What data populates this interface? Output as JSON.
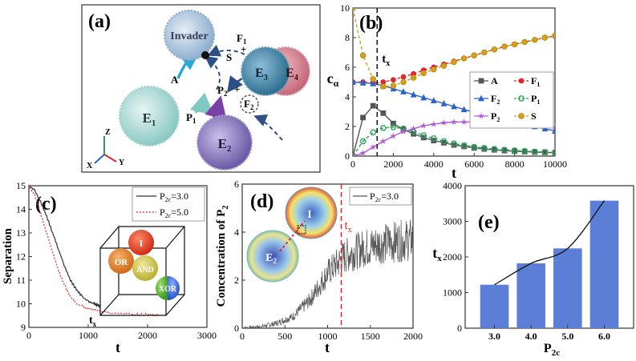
{
  "panel_a": {
    "label": "(a)",
    "nodes": {
      "invader": "Invader",
      "e1": "E",
      "e1_sub": "1",
      "e2": "E",
      "e2_sub": "2",
      "e3": "E",
      "e3_sub": "3",
      "e4": "E",
      "e4_sub": "4"
    },
    "species": {
      "a": "A",
      "p1": "P",
      "p1_sub": "1",
      "p2": "P",
      "p2_sub": "2",
      "f1": "F",
      "f1_sub": "1",
      "f2": "F",
      "f2_sub": "2",
      "s": "S",
      "plus": "+"
    },
    "axes": {
      "z": "Z",
      "x": "X",
      "y": "Y"
    },
    "colors": {
      "invader": "#a9c3dc",
      "e1": "#a8d8d4",
      "e2": "#8f7fc0",
      "e3": "#4f8fb0",
      "e4": "#d88a96"
    }
  },
  "chart_data": [
    {
      "panel": "(b)",
      "type": "line",
      "ylabel": "c",
      "ylabel_sub": "α",
      "xlabel": "t",
      "xlim": [
        0,
        10000
      ],
      "ylim": [
        0,
        10
      ],
      "xticks": [
        "0",
        "2000",
        "4000",
        "6000",
        "8000",
        "10000"
      ],
      "yticks": [
        "0",
        "2",
        "4",
        "6",
        "8",
        "10"
      ],
      "vline": {
        "x": 1200,
        "label": "t",
        "label_sub": "x"
      },
      "x": [
        0,
        500,
        1000,
        1500,
        2000,
        2500,
        3000,
        3500,
        4000,
        4500,
        5000,
        5500,
        6000,
        6500,
        7000,
        7500,
        8000,
        8500,
        9000,
        9500,
        10000
      ],
      "series": [
        {
          "name": "A",
          "sub": "",
          "color": "#555555",
          "marker": "square",
          "dash": false,
          "values": [
            0,
            2.6,
            3.4,
            2.9,
            2.2,
            1.8,
            1.5,
            1.25,
            1.05,
            0.9,
            0.75,
            0.65,
            0.55,
            0.48,
            0.42,
            0.37,
            0.33,
            0.3,
            0.27,
            0.25,
            0.23
          ]
        },
        {
          "name": "F",
          "sub": "1",
          "color": "#e0262a",
          "marker": "circle",
          "dash": true,
          "values": [
            5.0,
            5.0,
            4.95,
            5.0,
            5.15,
            5.35,
            5.55,
            5.8,
            6.0,
            6.2,
            6.4,
            6.6,
            6.8,
            7.0,
            7.2,
            7.4,
            7.55,
            7.7,
            7.85,
            8.0,
            8.1
          ]
        },
        {
          "name": "F",
          "sub": "2",
          "color": "#2b64c8",
          "marker": "triangle",
          "dash": false,
          "values": [
            5.0,
            4.95,
            4.9,
            4.75,
            4.55,
            4.35,
            4.15,
            3.95,
            3.75,
            3.55,
            3.35,
            3.15,
            2.95,
            2.75,
            2.6,
            2.45,
            2.3,
            2.15,
            2.0,
            1.85,
            1.7
          ]
        },
        {
          "name": "P",
          "sub": "1",
          "color": "#2aa35a",
          "marker": "hexagon",
          "dash": true,
          "values": [
            0,
            1.0,
            1.6,
            1.9,
            1.95,
            1.85,
            1.65,
            1.4,
            1.2,
            1.0,
            0.85,
            0.72,
            0.62,
            0.55,
            0.48,
            0.43,
            0.38,
            0.34,
            0.3,
            0.27,
            0.25
          ]
        },
        {
          "name": "P",
          "sub": "2",
          "color": "#b05ad8",
          "marker": "star",
          "dash": false,
          "values": [
            0,
            0.2,
            0.6,
            1.0,
            1.35,
            1.65,
            1.85,
            2.05,
            2.15,
            2.25,
            2.3,
            2.3,
            2.3,
            2.3,
            2.25,
            2.2,
            2.15,
            2.1,
            2.05,
            2.0,
            1.95
          ]
        },
        {
          "name": "S",
          "sub": "",
          "color": "#d4a017",
          "marker": "circle-filled",
          "dash": true,
          "values": [
            10.0,
            6.8,
            5.2,
            4.7,
            4.75,
            5.0,
            5.3,
            5.6,
            5.85,
            6.1,
            6.35,
            6.6,
            6.8,
            7.0,
            7.2,
            7.4,
            7.55,
            7.7,
            7.85,
            8.0,
            8.15
          ]
        }
      ]
    },
    {
      "panel": "(c)",
      "type": "line",
      "ylabel": "Separation",
      "xlabel": "t",
      "xlim": [
        0,
        3000
      ],
      "ylim": [
        9,
        15
      ],
      "xticks": [
        "0",
        "1000",
        "2000",
        "3000"
      ],
      "yticks": [
        "9",
        "10",
        "11",
        "12",
        "13",
        "14",
        "15"
      ],
      "marker_label": "t",
      "marker_label_sub": "x",
      "inset_labels": {
        "i": "I",
        "or": "OR",
        "and": "AND",
        "xor": "XOR"
      },
      "series": [
        {
          "name": "P",
          "sub": "2c",
          "suffix": "=3.0",
          "color": "#333333",
          "dash": false,
          "x": [
            0,
            100,
            200,
            300,
            400,
            500,
            600,
            700,
            800,
            900,
            1000,
            1100,
            1150,
            1200
          ],
          "values": [
            15.0,
            14.8,
            14.3,
            13.7,
            13.0,
            12.3,
            11.6,
            11.0,
            10.6,
            10.3,
            10.1,
            10.0,
            9.95,
            9.9
          ]
        },
        {
          "name": "P",
          "sub": "2c",
          "suffix": "=5.0",
          "color": "#e0262a",
          "dash": true,
          "x": [
            0,
            100,
            200,
            300,
            400,
            500,
            600,
            700,
            800,
            900,
            1000,
            1200,
            1400,
            1600,
            1800,
            2000,
            2200
          ],
          "values": [
            15.0,
            14.6,
            13.8,
            13.0,
            12.2,
            11.4,
            10.8,
            10.3,
            10.0,
            9.9,
            9.8,
            9.7,
            9.6,
            9.6,
            9.55,
            9.55,
            9.5
          ]
        }
      ]
    },
    {
      "panel": "(d)",
      "type": "line",
      "ylabel": "Concentration of P",
      "ylabel_sub": "2",
      "xlabel": "t",
      "xlim": [
        0,
        2000
      ],
      "ylim": [
        0,
        6
      ],
      "xticks": [
        "0",
        "500",
        "1000",
        "1500",
        "2000"
      ],
      "yticks": [
        "0",
        "2",
        "4",
        "6"
      ],
      "vline": {
        "x": 1160,
        "label": "t",
        "label_sub": "x"
      },
      "inset_labels": {
        "i": "I",
        "e2": "E",
        "e2_sub": "2"
      },
      "series": [
        {
          "name": "P",
          "sub": "2c",
          "suffix": "=3.0",
          "color": "#555555",
          "noise": true,
          "x": [
            0,
            200,
            400,
            600,
            800,
            1000,
            1200,
            1400,
            1600,
            1800,
            2000
          ],
          "values": [
            0,
            0.05,
            0.2,
            0.5,
            1.2,
            2.3,
            3.0,
            3.3,
            3.5,
            3.6,
            3.7
          ]
        }
      ]
    },
    {
      "panel": "(e)",
      "type": "bar",
      "ylabel": "t",
      "ylabel_sub": "x",
      "xlabel": "P",
      "xlabel_sub": "2c",
      "categories": [
        "3.0",
        "4.0",
        "5.0",
        "6.0"
      ],
      "values": [
        1220,
        1820,
        2240,
        3580
      ],
      "ylim": [
        0,
        4000
      ],
      "yticks": [
        "0",
        "1000",
        "2000",
        "3000",
        "4000"
      ],
      "bar_color": "#5b7fd6",
      "fit_line": true
    }
  ]
}
